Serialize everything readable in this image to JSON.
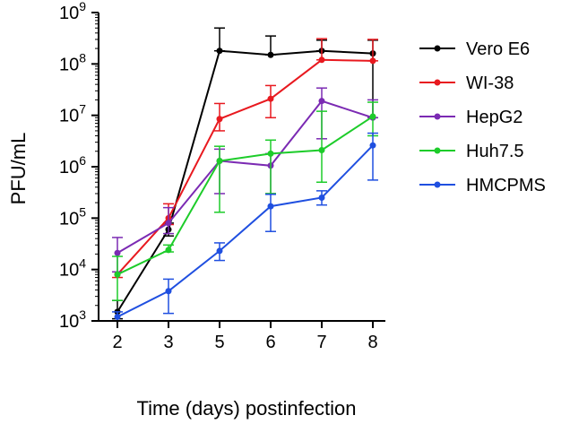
{
  "chart_data": {
    "type": "line",
    "title": "",
    "xlabel": "Time (days) postinfection",
    "ylabel": "PFU/mL",
    "yscale": "log",
    "ylim": [
      1000,
      1000000000
    ],
    "x_categories": [
      "2",
      "3",
      "5",
      "6",
      "7",
      "8"
    ],
    "y_ticks": [
      {
        "base": "10",
        "exp": "3"
      },
      {
        "base": "10",
        "exp": "4"
      },
      {
        "base": "10",
        "exp": "5"
      },
      {
        "base": "10",
        "exp": "6"
      },
      {
        "base": "10",
        "exp": "7"
      },
      {
        "base": "10",
        "exp": "8"
      },
      {
        "base": "10",
        "exp": "9"
      }
    ],
    "legend_position": "right",
    "series": [
      {
        "name": "Vero E6",
        "color": "#000000",
        "values": [
          1500,
          60000,
          180000000,
          150000000,
          180000000,
          160000000
        ],
        "err_hi": [
          2500,
          80000,
          500000000,
          350000000,
          290000000,
          290000000
        ],
        "err_lo": [
          1100,
          45000,
          180000000,
          150000000,
          180000000,
          9000000
        ]
      },
      {
        "name": "WI-38",
        "color": "#e8191f",
        "values": [
          8000,
          100000,
          8500000,
          21000000,
          120000000,
          115000000
        ],
        "err_hi": [
          9000,
          190000,
          17000000,
          38000000,
          310000000,
          300000000
        ],
        "err_lo": [
          7000,
          75000,
          5000000,
          9000000,
          120000000,
          115000000
        ]
      },
      {
        "name": "HepG2",
        "color": "#7b2ab3",
        "values": [
          21000,
          80000,
          1300000,
          1050000,
          19000000,
          9000000
        ],
        "err_hi": [
          42000,
          160000,
          2200000,
          1800000,
          34000000,
          20000000
        ],
        "err_lo": [
          9000,
          50000,
          300000,
          300000,
          3500000,
          9000000
        ]
      },
      {
        "name": "Huh7.5",
        "color": "#1dcc2a",
        "values": [
          8000,
          24000,
          1300000,
          1800000,
          2100000,
          9500000
        ],
        "err_hi": [
          18000,
          30000,
          2500000,
          3300000,
          12000000,
          18000000
        ],
        "err_lo": [
          2500,
          22000,
          130000,
          300000,
          500000,
          4000000
        ]
      },
      {
        "name": "HMCPMS",
        "color": "#1f4fe0",
        "values": [
          1200,
          3800,
          23000,
          170000,
          250000,
          2600000
        ],
        "err_hi": [
          1500,
          6500,
          33000,
          290000,
          340000,
          4500000
        ],
        "err_lo": [
          1000,
          1400,
          15000,
          55000,
          180000,
          550000
        ]
      }
    ]
  }
}
